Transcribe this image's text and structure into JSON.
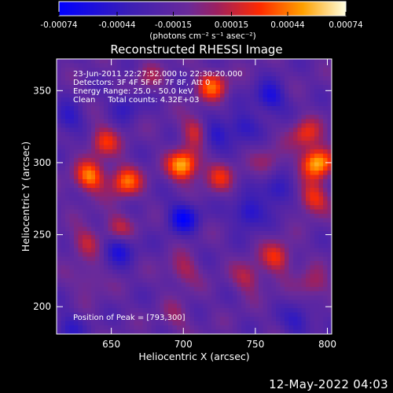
{
  "chart_data": {
    "type": "heatmap",
    "title": "Reconstructed RHESSI Image",
    "xlabel": "Heliocentric X (arcsec)",
    "ylabel": "Heliocentric Y (arcsec)",
    "xlim": [
      612,
      803
    ],
    "ylim": [
      181,
      372
    ],
    "x_ticks": [
      "650",
      "700",
      "750",
      "800"
    ],
    "x_tick_values": [
      650,
      700,
      750,
      800
    ],
    "y_ticks": [
      "200",
      "250",
      "300",
      "350"
    ],
    "y_tick_values": [
      200,
      250,
      300,
      350
    ],
    "colorbar": {
      "ticks": [
        "-0.00074",
        "-0.00044",
        "-0.00015",
        "0.00015",
        "0.00044",
        "0.00074"
      ],
      "tick_values": [
        -0.00074,
        -0.00044,
        -0.00015,
        0.00015,
        0.00044,
        0.00074
      ],
      "units_label": "(photons cm⁻² s⁻¹ asec⁻²)",
      "range": [
        -0.00074,
        0.00074
      ]
    },
    "annotations": [
      "23-Jun-2011 22:27:52.000 to 22:30:20.000",
      "Detectors: 3F 4F 5F 6F 7F 8F, Att 0",
      "Energy Range: 25.0 - 50.0 keV",
      "Clean     Total counts: 4.32E+03"
    ],
    "peak_label": "Position of Peak = [793,300]",
    "peak": [
      793,
      300
    ],
    "peaks": [
      {
        "x": 700,
        "y": 298,
        "v": 0.00072
      },
      {
        "x": 793,
        "y": 300,
        "v": 0.00074
      },
      {
        "x": 635,
        "y": 290,
        "v": 0.0006
      },
      {
        "x": 660,
        "y": 287,
        "v": 0.00055
      },
      {
        "x": 645,
        "y": 315,
        "v": 0.00042
      },
      {
        "x": 720,
        "y": 353,
        "v": 0.0005
      },
      {
        "x": 710,
        "y": 322,
        "v": 0.00045
      },
      {
        "x": 655,
        "y": 255,
        "v": 0.0003
      },
      {
        "x": 790,
        "y": 275,
        "v": 0.00045
      },
      {
        "x": 785,
        "y": 320,
        "v": 0.0004
      },
      {
        "x": 765,
        "y": 234,
        "v": 0.00042
      },
      {
        "x": 745,
        "y": 220,
        "v": 0.0003
      },
      {
        "x": 700,
        "y": 225,
        "v": 0.00028
      },
      {
        "x": 635,
        "y": 218,
        "v": 0.0002
      },
      {
        "x": 725,
        "y": 290,
        "v": 0.00035
      },
      {
        "x": 632,
        "y": 245,
        "v": 0.0003
      },
      {
        "x": 790,
        "y": 215,
        "v": 0.00028
      },
      {
        "x": 760,
        "y": 300,
        "v": 0.0002
      },
      {
        "x": 675,
        "y": 360,
        "v": 0.0002
      },
      {
        "x": 695,
        "y": 192,
        "v": 0.00018
      }
    ],
    "troughs": [
      {
        "x": 700,
        "y": 262,
        "v": -0.0005
      },
      {
        "x": 720,
        "y": 320,
        "v": -0.00042
      },
      {
        "x": 655,
        "y": 240,
        "v": -0.00038
      },
      {
        "x": 760,
        "y": 345,
        "v": -0.00042
      },
      {
        "x": 745,
        "y": 265,
        "v": -0.0004
      },
      {
        "x": 765,
        "y": 280,
        "v": -0.00035
      },
      {
        "x": 660,
        "y": 340,
        "v": -0.00025
      },
      {
        "x": 780,
        "y": 190,
        "v": -0.0003
      },
      {
        "x": 620,
        "y": 330,
        "v": -0.0003
      },
      {
        "x": 740,
        "y": 325,
        "v": -0.0003
      },
      {
        "x": 620,
        "y": 185,
        "v": -0.00025
      }
    ]
  },
  "footer": {
    "timestamp": "12-May-2022 04:03"
  }
}
